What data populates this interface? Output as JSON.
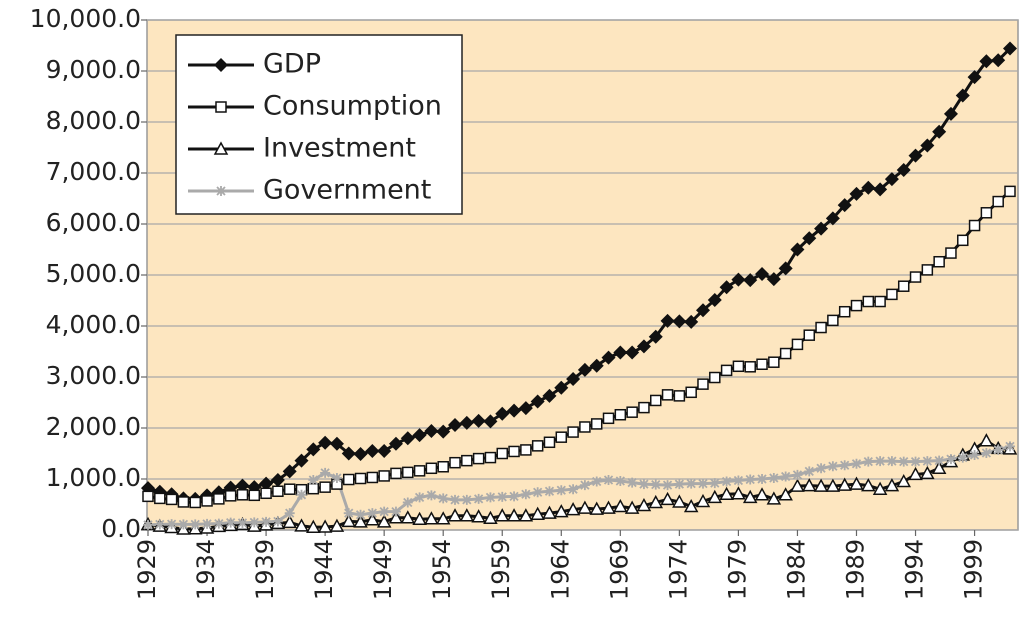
{
  "chart_data": {
    "type": "line",
    "categories": [
      "1929",
      null,
      null,
      null,
      null,
      "1934",
      null,
      null,
      null,
      null,
      "1939",
      null,
      null,
      null,
      null,
      "1944",
      null,
      null,
      null,
      null,
      "1949",
      null,
      null,
      null,
      null,
      "1954",
      null,
      null,
      null,
      null,
      "1959",
      null,
      null,
      null,
      null,
      "1964",
      null,
      null,
      null,
      null,
      "1969",
      null,
      null,
      null,
      null,
      "1974",
      null,
      null,
      null,
      null,
      "1979",
      null,
      null,
      null,
      null,
      "1984",
      null,
      null,
      null,
      null,
      "1989",
      null,
      null,
      null,
      null,
      "1994",
      null,
      null,
      null,
      null,
      "1999",
      null,
      null,
      null
    ],
    "series": [
      {
        "name": "GDP",
        "color": "#111111",
        "marker": "diamond",
        "values": [
          820,
          750,
          700,
          620,
          610,
          680,
          740,
          830,
          870,
          840,
          910,
          980,
          1150,
          1360,
          1580,
          1710,
          1690,
          1500,
          1490,
          1550,
          1550,
          1690,
          1800,
          1860,
          1940,
          1930,
          2060,
          2100,
          2140,
          2130,
          2280,
          2340,
          2390,
          2520,
          2630,
          2790,
          2960,
          3140,
          3220,
          3380,
          3480,
          3480,
          3600,
          3790,
          4100,
          4090,
          4080,
          4310,
          4510,
          4760,
          4910,
          4900,
          5020,
          4920,
          5130,
          5500,
          5720,
          5910,
          6110,
          6370,
          6590,
          6710,
          6680,
          6880,
          7060,
          7340,
          7540,
          7810,
          8160,
          8520,
          8880,
          9190,
          9210,
          9440
        ]
      },
      {
        "name": "Consumption",
        "color": "#111111",
        "marker": "square",
        "values": [
          660,
          620,
          600,
          550,
          540,
          570,
          610,
          670,
          690,
          680,
          720,
          760,
          800,
          790,
          810,
          840,
          900,
          990,
          1010,
          1030,
          1060,
          1110,
          1130,
          1160,
          1210,
          1240,
          1320,
          1360,
          1400,
          1420,
          1500,
          1540,
          1570,
          1650,
          1720,
          1820,
          1920,
          2020,
          2080,
          2190,
          2260,
          2310,
          2400,
          2540,
          2650,
          2630,
          2700,
          2860,
          2990,
          3130,
          3210,
          3200,
          3250,
          3290,
          3460,
          3640,
          3820,
          3970,
          4110,
          4280,
          4400,
          4480,
          4480,
          4620,
          4780,
          4960,
          5100,
          5260,
          5430,
          5680,
          5970,
          6220,
          6440,
          6640
        ]
      },
      {
        "name": "Investment",
        "color": "#111111",
        "marker": "triangle",
        "values": [
          110,
          75,
          50,
          20,
          25,
          40,
          70,
          90,
          110,
          75,
          100,
          130,
          150,
          80,
          55,
          60,
          75,
          170,
          160,
          200,
          160,
          240,
          240,
          210,
          220,
          220,
          280,
          280,
          260,
          230,
          280,
          280,
          280,
          310,
          330,
          360,
          400,
          430,
          410,
          430,
          460,
          430,
          480,
          540,
          600,
          550,
          460,
          560,
          640,
          700,
          710,
          640,
          690,
          610,
          690,
          860,
          870,
          860,
          860,
          880,
          900,
          870,
          800,
          870,
          950,
          1090,
          1110,
          1210,
          1340,
          1470,
          1590,
          1750,
          1600,
          1590
        ]
      },
      {
        "name": "Government",
        "color": "#aaaaaa",
        "marker": "asterisk",
        "values": [
          100,
          110,
          115,
          110,
          110,
          120,
          125,
          145,
          140,
          150,
          160,
          170,
          330,
          690,
          980,
          1120,
          1020,
          330,
          300,
          330,
          360,
          360,
          540,
          640,
          680,
          620,
          590,
          590,
          610,
          640,
          650,
          660,
          700,
          740,
          760,
          780,
          800,
          880,
          950,
          980,
          960,
          930,
          900,
          890,
          880,
          900,
          910,
          910,
          920,
          950,
          970,
          990,
          1000,
          1020,
          1050,
          1080,
          1150,
          1210,
          1250,
          1270,
          1300,
          1340,
          1350,
          1350,
          1340,
          1340,
          1350,
          1360,
          1390,
          1420,
          1470,
          1510,
          1570,
          1640
        ]
      }
    ],
    "ylim": [
      0,
      10000
    ],
    "yticks": [
      {
        "value": 0,
        "label": "0.0"
      },
      {
        "value": 1000,
        "label": "1,000.0"
      },
      {
        "value": 2000,
        "label": "2,000.0"
      },
      {
        "value": 3000,
        "label": "3,000.0"
      },
      {
        "value": 4000,
        "label": "4,000.0"
      },
      {
        "value": 5000,
        "label": "5,000.0"
      },
      {
        "value": 6000,
        "label": "6,000.0"
      },
      {
        "value": 7000,
        "label": "7,000.0"
      },
      {
        "value": 8000,
        "label": "8,000.0"
      },
      {
        "value": 9000,
        "label": "9,000.0"
      },
      {
        "value": 10000,
        "label": "10,000.0"
      }
    ],
    "grid": true,
    "background": "#fde6c0",
    "legend": "upper left"
  }
}
